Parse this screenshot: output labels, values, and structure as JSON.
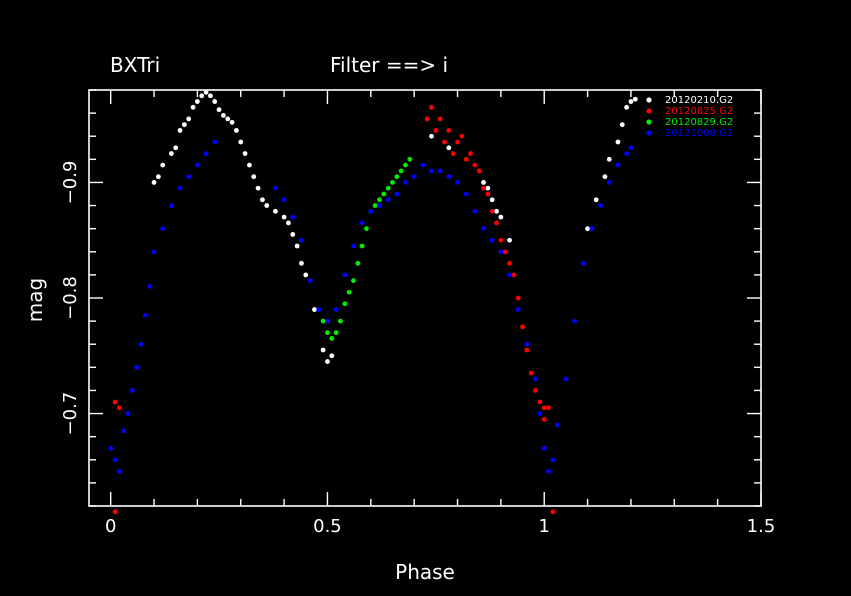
{
  "chart_data": {
    "type": "scatter",
    "title": "BXTri",
    "subtitle": "Filter ==> i",
    "xlabel": "Phase",
    "ylabel": "mag",
    "xlim": [
      -0.05,
      1.5
    ],
    "ylim": [
      -0.98,
      -0.62
    ],
    "y_inverted": true,
    "grid": false,
    "legend_position": "top-right",
    "x_ticks": [
      {
        "v": 0,
        "label": "0"
      },
      {
        "v": 0.5,
        "label": "0.5"
      },
      {
        "v": 1,
        "label": "1"
      },
      {
        "v": 1.5,
        "label": "1.5"
      }
    ],
    "y_ticks": [
      {
        "v": -0.9,
        "label": "−0.9"
      },
      {
        "v": -0.8,
        "label": "−0.8"
      },
      {
        "v": -0.7,
        "label": "−0.7"
      }
    ],
    "series": [
      {
        "name": "20120210.G2",
        "color": "#ffffff",
        "points": [
          [
            0.1,
            -0.9
          ],
          [
            0.11,
            -0.905
          ],
          [
            0.12,
            -0.915
          ],
          [
            0.14,
            -0.925
          ],
          [
            0.15,
            -0.93
          ],
          [
            0.16,
            -0.945
          ],
          [
            0.17,
            -0.95
          ],
          [
            0.18,
            -0.955
          ],
          [
            0.19,
            -0.965
          ],
          [
            0.2,
            -0.97
          ],
          [
            0.21,
            -0.975
          ],
          [
            0.22,
            -0.978
          ],
          [
            0.23,
            -0.975
          ],
          [
            0.24,
            -0.97
          ],
          [
            0.25,
            -0.963
          ],
          [
            0.26,
            -0.958
          ],
          [
            0.27,
            -0.955
          ],
          [
            0.28,
            -0.952
          ],
          [
            0.29,
            -0.945
          ],
          [
            0.3,
            -0.935
          ],
          [
            0.31,
            -0.925
          ],
          [
            0.32,
            -0.915
          ],
          [
            0.33,
            -0.905
          ],
          [
            0.34,
            -0.895
          ],
          [
            0.35,
            -0.885
          ],
          [
            0.36,
            -0.88
          ],
          [
            0.38,
            -0.875
          ],
          [
            0.4,
            -0.87
          ],
          [
            0.41,
            -0.865
          ],
          [
            0.42,
            -0.855
          ],
          [
            0.43,
            -0.845
          ],
          [
            0.44,
            -0.83
          ],
          [
            0.45,
            -0.82
          ],
          [
            0.47,
            -0.79
          ],
          [
            0.49,
            -0.755
          ],
          [
            0.5,
            -0.745
          ],
          [
            0.51,
            -0.75
          ],
          [
            0.74,
            -0.94
          ],
          [
            0.78,
            -0.93
          ],
          [
            0.86,
            -0.9
          ],
          [
            0.87,
            -0.895
          ],
          [
            0.88,
            -0.885
          ],
          [
            0.89,
            -0.875
          ],
          [
            0.9,
            -0.87
          ],
          [
            0.92,
            -0.85
          ],
          [
            1.1,
            -0.86
          ],
          [
            1.12,
            -0.885
          ],
          [
            1.14,
            -0.905
          ],
          [
            1.15,
            -0.92
          ],
          [
            1.17,
            -0.935
          ],
          [
            1.18,
            -0.95
          ],
          [
            1.19,
            -0.965
          ],
          [
            1.2,
            -0.97
          ],
          [
            1.21,
            -0.972
          ]
        ]
      },
      {
        "name": "20120825.G2",
        "color": "#ff0000",
        "points": [
          [
            0.01,
            -0.71
          ],
          [
            0.02,
            -0.705
          ],
          [
            0.01,
            -0.615
          ],
          [
            0.73,
            -0.955
          ],
          [
            0.74,
            -0.965
          ],
          [
            0.75,
            -0.945
          ],
          [
            0.76,
            -0.955
          ],
          [
            0.77,
            -0.935
          ],
          [
            0.78,
            -0.945
          ],
          [
            0.79,
            -0.925
          ],
          [
            0.8,
            -0.935
          ],
          [
            0.81,
            -0.94
          ],
          [
            0.82,
            -0.92
          ],
          [
            0.83,
            -0.925
          ],
          [
            0.84,
            -0.915
          ],
          [
            0.85,
            -0.91
          ],
          [
            0.86,
            -0.895
          ],
          [
            0.87,
            -0.89
          ],
          [
            0.88,
            -0.875
          ],
          [
            0.89,
            -0.865
          ],
          [
            0.9,
            -0.85
          ],
          [
            0.91,
            -0.84
          ],
          [
            0.92,
            -0.83
          ],
          [
            0.93,
            -0.82
          ],
          [
            0.94,
            -0.8
          ],
          [
            0.95,
            -0.775
          ],
          [
            0.96,
            -0.755
          ],
          [
            0.97,
            -0.735
          ],
          [
            0.98,
            -0.72
          ],
          [
            0.99,
            -0.71
          ],
          [
            1.0,
            -0.705
          ],
          [
            1.01,
            -0.705
          ],
          [
            1.0,
            -0.695
          ],
          [
            1.02,
            -0.615
          ]
        ]
      },
      {
        "name": "20120829.G2",
        "color": "#00ee00",
        "points": [
          [
            0.49,
            -0.78
          ],
          [
            0.5,
            -0.77
          ],
          [
            0.51,
            -0.765
          ],
          [
            0.52,
            -0.77
          ],
          [
            0.53,
            -0.78
          ],
          [
            0.54,
            -0.795
          ],
          [
            0.55,
            -0.805
          ],
          [
            0.56,
            -0.815
          ],
          [
            0.57,
            -0.83
          ],
          [
            0.58,
            -0.845
          ],
          [
            0.59,
            -0.86
          ],
          [
            0.6,
            -0.875
          ],
          [
            0.61,
            -0.88
          ],
          [
            0.62,
            -0.885
          ],
          [
            0.63,
            -0.89
          ],
          [
            0.64,
            -0.895
          ],
          [
            0.65,
            -0.9
          ],
          [
            0.66,
            -0.905
          ],
          [
            0.67,
            -0.91
          ],
          [
            0.68,
            -0.915
          ],
          [
            0.69,
            -0.92
          ]
        ]
      },
      {
        "name": "20121008.G2",
        "color": "#0000ff",
        "points": [
          [
            0.0,
            -0.67
          ],
          [
            0.01,
            -0.66
          ],
          [
            0.02,
            -0.65
          ],
          [
            0.03,
            -0.685
          ],
          [
            0.04,
            -0.7
          ],
          [
            0.05,
            -0.72
          ],
          [
            0.06,
            -0.74
          ],
          [
            0.07,
            -0.76
          ],
          [
            0.08,
            -0.785
          ],
          [
            0.09,
            -0.81
          ],
          [
            0.1,
            -0.84
          ],
          [
            0.12,
            -0.86
          ],
          [
            0.14,
            -0.88
          ],
          [
            0.16,
            -0.895
          ],
          [
            0.18,
            -0.905
          ],
          [
            0.2,
            -0.915
          ],
          [
            0.22,
            -0.925
          ],
          [
            0.24,
            -0.935
          ],
          [
            0.38,
            -0.895
          ],
          [
            0.4,
            -0.885
          ],
          [
            0.42,
            -0.87
          ],
          [
            0.44,
            -0.85
          ],
          [
            0.46,
            -0.815
          ],
          [
            0.48,
            -0.79
          ],
          [
            0.5,
            -0.78
          ],
          [
            0.52,
            -0.79
          ],
          [
            0.54,
            -0.82
          ],
          [
            0.56,
            -0.845
          ],
          [
            0.58,
            -0.865
          ],
          [
            0.6,
            -0.875
          ],
          [
            0.62,
            -0.88
          ],
          [
            0.64,
            -0.885
          ],
          [
            0.66,
            -0.89
          ],
          [
            0.68,
            -0.9
          ],
          [
            0.7,
            -0.905
          ],
          [
            0.72,
            -0.915
          ],
          [
            0.74,
            -0.91
          ],
          [
            0.76,
            -0.91
          ],
          [
            0.78,
            -0.905
          ],
          [
            0.8,
            -0.9
          ],
          [
            0.82,
            -0.89
          ],
          [
            0.84,
            -0.875
          ],
          [
            0.86,
            -0.86
          ],
          [
            0.88,
            -0.85
          ],
          [
            0.9,
            -0.84
          ],
          [
            0.92,
            -0.82
          ],
          [
            0.94,
            -0.79
          ],
          [
            0.96,
            -0.76
          ],
          [
            0.98,
            -0.73
          ],
          [
            0.99,
            -0.7
          ],
          [
            1.0,
            -0.67
          ],
          [
            1.01,
            -0.65
          ],
          [
            1.02,
            -0.66
          ],
          [
            1.03,
            -0.69
          ],
          [
            1.05,
            -0.73
          ],
          [
            1.07,
            -0.78
          ],
          [
            1.09,
            -0.83
          ],
          [
            1.11,
            -0.86
          ],
          [
            1.13,
            -0.88
          ],
          [
            1.15,
            -0.9
          ],
          [
            1.17,
            -0.915
          ],
          [
            1.19,
            -0.925
          ],
          [
            1.2,
            -0.93
          ]
        ]
      }
    ]
  }
}
